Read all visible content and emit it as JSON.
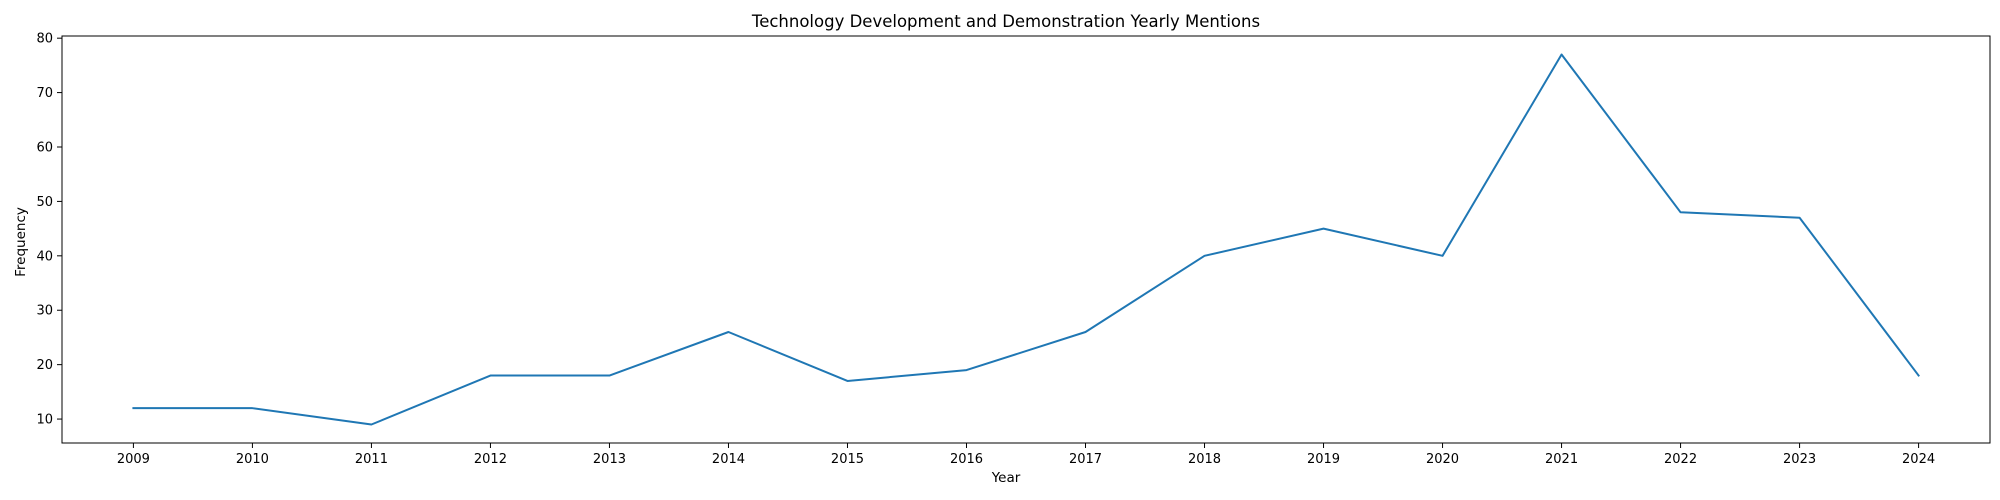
{
  "chart_data": {
    "type": "line",
    "title": "Technology Development and Demonstration Yearly Mentions",
    "xlabel": "Year",
    "ylabel": "Frequency",
    "x": [
      "2009",
      "2010",
      "2011",
      "2012",
      "2013",
      "2014",
      "2015",
      "2016",
      "2017",
      "2018",
      "2019",
      "2020",
      "2021",
      "2022",
      "2023",
      "2024"
    ],
    "series": [
      {
        "values": [
          12,
          12,
          9,
          18,
          18,
          26,
          17,
          19,
          26,
          40,
          45,
          40,
          77,
          48,
          47,
          18
        ],
        "color": "#1f77b4"
      }
    ],
    "yticks": [
      10,
      20,
      30,
      40,
      50,
      60,
      70,
      80
    ],
    "ylim": [
      5.6,
      80.4
    ],
    "grid": false,
    "legend": "none"
  }
}
